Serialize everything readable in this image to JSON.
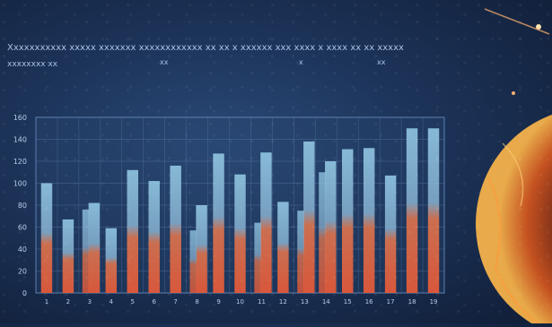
{
  "header": {
    "title": "Xxxxxxxxxxx xxxxx xxxxxxx xxxxxxxxxxxx xx xx x xxxxxx xxx xxxx x xxxx xx xx xxxxx",
    "subtitle": "xxxxxxxx xx",
    "caption_marks": [
      "xx",
      "x",
      "xx"
    ]
  },
  "chart_data": {
    "type": "bar",
    "title": "",
    "xlabel": "",
    "ylabel": "",
    "ylim": [
      0,
      160
    ],
    "yticks": [
      0,
      20,
      40,
      60,
      80,
      100,
      120,
      140,
      160
    ],
    "ytick_labels": [
      "0",
      "20",
      "40",
      "60",
      "80",
      "100",
      "120",
      "140",
      "160"
    ],
    "grid": true,
    "categories": [
      "1",
      "2",
      "3",
      "4",
      "5",
      "6",
      "7",
      "8",
      "9",
      "10",
      "11",
      "12",
      "13",
      "14",
      "15",
      "16",
      "17",
      "18",
      "19"
    ],
    "values": [
      100,
      67,
      82,
      59,
      112,
      102,
      116,
      80,
      127,
      108,
      128,
      83,
      138,
      120,
      131,
      132,
      107,
      150,
      150
    ],
    "secondary_values": [
      0,
      0,
      76,
      0,
      0,
      0,
      0,
      57,
      0,
      0,
      64,
      0,
      75,
      110,
      0,
      0,
      0,
      0,
      0
    ],
    "colors": {
      "top": "#8fc4e0",
      "bottom": "#e85a38",
      "grid": "#6f8fbf",
      "label": "#b7cbe8"
    }
  }
}
